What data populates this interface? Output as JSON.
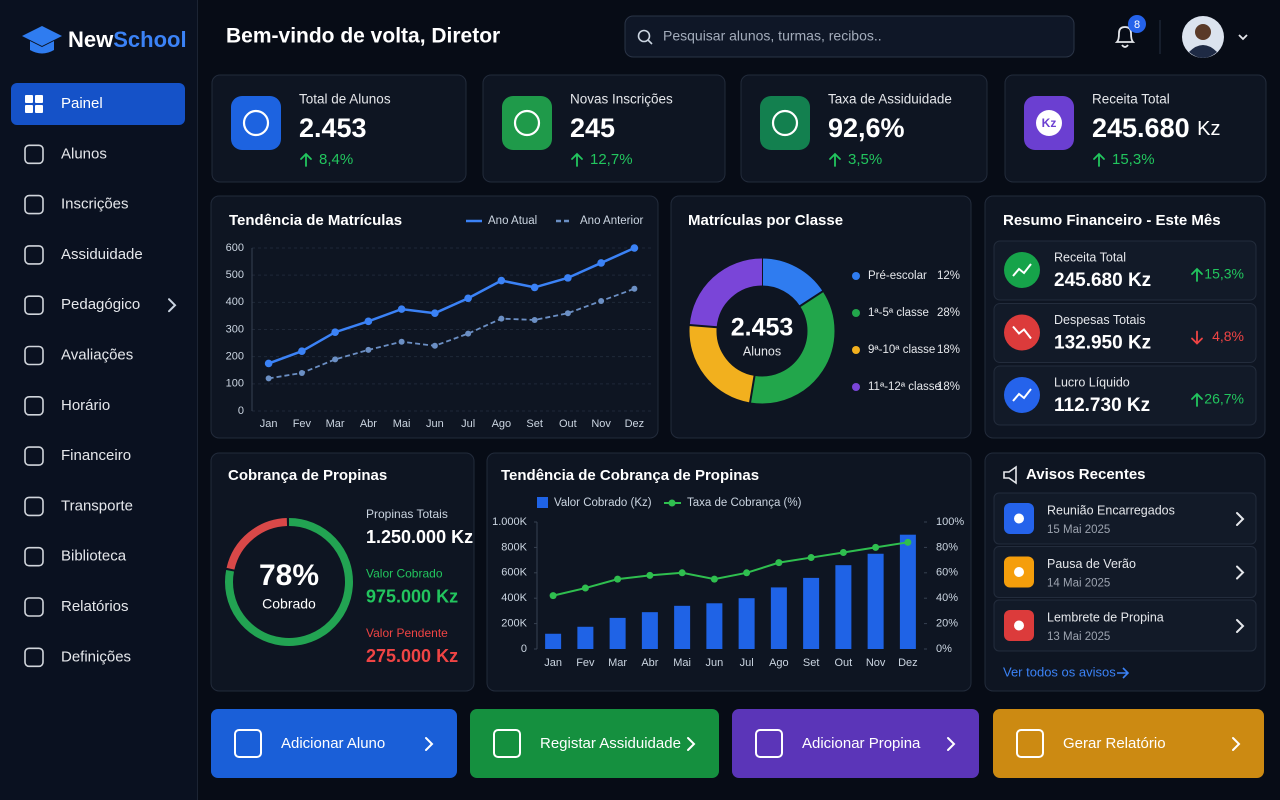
{
  "brand": {
    "first": "New",
    "second": "School"
  },
  "nav": {
    "active": 0,
    "items": [
      {
        "label": "Painel"
      },
      {
        "label": "Alunos"
      },
      {
        "label": "Inscrições"
      },
      {
        "label": "Assiduidade"
      },
      {
        "label": "Pedagógico",
        "submenu": true
      },
      {
        "label": "Avaliações"
      },
      {
        "label": "Horário"
      },
      {
        "label": "Financeiro"
      },
      {
        "label": "Transporte"
      },
      {
        "label": "Biblioteca"
      },
      {
        "label": "Relatórios"
      },
      {
        "label": "Definições"
      }
    ]
  },
  "header": {
    "greeting": "Bem-vindo de volta, Diretor",
    "search_placeholder": "Pesquisar alunos, turmas, recibos..",
    "notifications": 8
  },
  "stats": [
    {
      "label": "Total de Alunos",
      "value": "2.453",
      "change": "8,4%",
      "color": "#1d63e0"
    },
    {
      "label": "Novas Inscrições",
      "value": "245",
      "change": "12,7%",
      "color": "#1f9a4a"
    },
    {
      "label": "Taxa de Assiduidade",
      "value": "92,6%",
      "change": "3,5%",
      "color": "#13804f"
    },
    {
      "label": "Receita Total",
      "value": "245.680",
      "unit": "Kz",
      "icon_text": "Kz",
      "change": "15,3%",
      "color": "#6b3fd1"
    }
  ],
  "finance": {
    "title": "Resumo Financeiro - Este Mês",
    "items": [
      {
        "label": "Receita Total",
        "value": "245.680 Kz",
        "change": "15,3%",
        "trend": "up",
        "color": "#16a34a"
      },
      {
        "label": "Despesas Totais",
        "value": "132.950 Kz",
        "change": "4,8%",
        "trend": "down",
        "color": "#dc3b3b"
      },
      {
        "label": "Lucro Líquido",
        "value": "112.730 Kz",
        "change": "26,7%",
        "trend": "up",
        "color": "#2563eb"
      }
    ]
  },
  "fees": {
    "title": "Cobrança de Propinas",
    "rows": [
      {
        "label": "Propinas Totais",
        "value": "1.250.000 Kz",
        "color": "#ffffff"
      },
      {
        "label": "Valor Cobrado",
        "value": "975.000 Kz",
        "color": "#22c55e"
      },
      {
        "label": "Valor Pendente",
        "value": "275.000 Kz",
        "color": "#ef4444"
      }
    ]
  },
  "notices": {
    "title": "Avisos Recentes",
    "link": "Ver todos os avisos",
    "items": [
      {
        "title": "Reunião Encarregados",
        "date": "15 Mai 2025",
        "color": "#2563eb"
      },
      {
        "title": "Pausa de Verão",
        "date": "14 Mai 2025",
        "color": "#f59e0b"
      },
      {
        "title": "Lembrete de Propina",
        "date": "13 Mai 2025",
        "color": "#dc3b3b"
      }
    ]
  },
  "actions": [
    {
      "label": "Adicionar Aluno",
      "color": "#1a5fd8"
    },
    {
      "label": "Registar Assiduidade",
      "color": "#15903f"
    },
    {
      "label": "Adicionar Propina",
      "color": "#5b35b8"
    },
    {
      "label": "Gerar Relatório",
      "color": "#cc8a12"
    }
  ],
  "chart_data": [
    {
      "type": "line",
      "title": "Tendência de Matrículas",
      "categories": [
        "Jan",
        "Fev",
        "Mar",
        "Abr",
        "Mai",
        "Jun",
        "Jul",
        "Ago",
        "Set",
        "Out",
        "Nov",
        "Dez"
      ],
      "series": [
        {
          "name": "Ano Atual",
          "color": "#3b82f6",
          "dash": false,
          "values": [
            175,
            220,
            290,
            330,
            375,
            360,
            415,
            480,
            455,
            490,
            545,
            600
          ]
        },
        {
          "name": "Ano Anterior",
          "color": "#6b8fc4",
          "dash": true,
          "values": [
            120,
            140,
            190,
            225,
            255,
            240,
            285,
            340,
            335,
            360,
            405,
            450
          ]
        }
      ],
      "ylim": [
        0,
        600
      ],
      "yticks": [
        0,
        100,
        200,
        300,
        400,
        500,
        600
      ],
      "grid": true,
      "legend": "top-right"
    },
    {
      "type": "donut",
      "title": "Matrículas por Classe",
      "center_value": "2.453",
      "center_label": "Alunos",
      "categories": [
        "Pré-escolar",
        "1ª-5ª classe",
        "9ª-10ª classe",
        "11ª-12ª classe"
      ],
      "values": [
        12,
        28,
        18,
        18
      ],
      "value_labels": [
        "12%",
        "28%",
        "18%",
        "18%"
      ],
      "colors": [
        "#2f7cf0",
        "#22a64b",
        "#f2b01e",
        "#7a45d8"
      ],
      "legend": "right"
    },
    {
      "type": "gauge",
      "values": [
        78
      ],
      "value_labels": [
        "78%"
      ],
      "caption": "Cobrado",
      "ylim": [
        0,
        100
      ],
      "color": "#22a352",
      "rest_color": "#d94848"
    },
    {
      "type": "bar",
      "title": "Tendência de Cobrança de Propinas",
      "categories": [
        "Jan",
        "Fev",
        "Mar",
        "Abr",
        "Mai",
        "Jun",
        "Jul",
        "Ago",
        "Set",
        "Out",
        "Nov",
        "Dez"
      ],
      "series": [
        {
          "name": "Valor Cobrado (Kz)",
          "type": "bar",
          "color": "#1f63e6",
          "values": [
            120000,
            175000,
            245000,
            290000,
            340000,
            360000,
            400000,
            485000,
            560000,
            660000,
            750000,
            900000
          ]
        },
        {
          "name": "Taxa de Cobrança (%)",
          "type": "line",
          "axis": "y2",
          "color": "#2fbf4f",
          "values": [
            42,
            48,
            55,
            58,
            60,
            55,
            60,
            68,
            72,
            76,
            80,
            84
          ]
        }
      ],
      "ylim": [
        0,
        1000000
      ],
      "yticks": [
        0,
        {
          "value": 200000,
          "label": "200K"
        },
        {
          "value": 400000,
          "label": "400K"
        },
        {
          "value": 600000,
          "label": "600K"
        },
        {
          "value": 800000,
          "label": "800K"
        },
        {
          "value": 1000000,
          "label": "1.000K"
        }
      ],
      "y2lim": [
        0,
        100
      ],
      "y2ticks": [
        {
          "value": 0,
          "label": "0%"
        },
        {
          "value": 20,
          "label": "20%"
        },
        {
          "value": 40,
          "label": "40%"
        },
        {
          "value": 60,
          "label": "60%"
        },
        {
          "value": 80,
          "label": "80%"
        },
        {
          "value": 100,
          "label": "100%"
        }
      ],
      "legend": "top-left"
    }
  ]
}
